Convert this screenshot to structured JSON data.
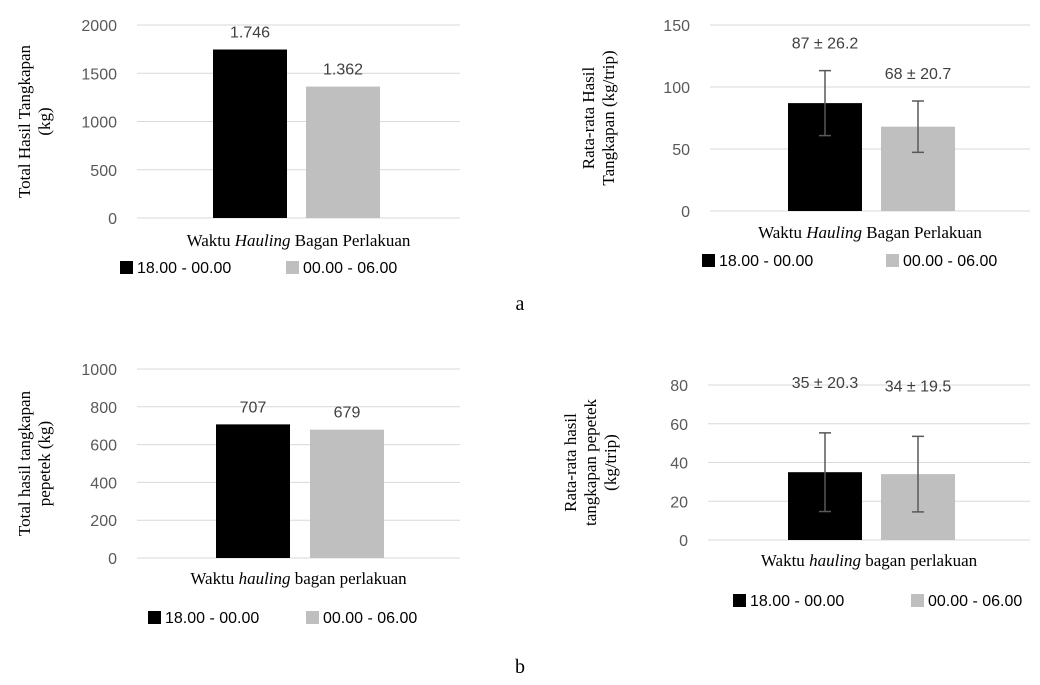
{
  "captions": {
    "a": "a",
    "b": "b"
  },
  "chart_data": [
    {
      "type": "bar",
      "categories": [
        ""
      ],
      "series": [
        {
          "name": "18.00 - 00.00",
          "values": [
            1746
          ],
          "labels": [
            "1.746"
          ],
          "color": "#000000"
        },
        {
          "name": "00.00 - 06.00",
          "values": [
            1362
          ],
          "labels": [
            "1.362"
          ],
          "color": "#bfbfbf"
        }
      ],
      "ylabel_lines": [
        "Total Hasil Tangkapan",
        "(kg)"
      ],
      "xlabel_parts": [
        "Waktu ",
        "Hauling",
        " Bagan Perlakuan"
      ],
      "ylim": [
        0,
        2000
      ],
      "yticks": [
        0,
        500,
        1000,
        1500,
        2000
      ],
      "grid": true,
      "legend_position": "bottom"
    },
    {
      "type": "bar",
      "categories": [
        ""
      ],
      "series": [
        {
          "name": "18.00 - 00.00",
          "values": [
            87
          ],
          "errors": [
            26.2
          ],
          "labels": [
            "87 ± 26.2"
          ],
          "color": "#000000"
        },
        {
          "name": "00.00 - 06.00",
          "values": [
            68
          ],
          "errors": [
            20.7
          ],
          "labels": [
            "68 ± 20.7"
          ],
          "color": "#bfbfbf"
        }
      ],
      "ylabel_lines": [
        "Rata-rata Hasil",
        "Tangkapan (kg/trip)"
      ],
      "xlabel_parts": [
        "Waktu ",
        "Hauling",
        " Bagan Perlakuan"
      ],
      "ylim": [
        0,
        150
      ],
      "yticks": [
        0,
        50,
        100,
        150
      ],
      "grid": true,
      "legend_position": "bottom"
    },
    {
      "type": "bar",
      "categories": [
        ""
      ],
      "series": [
        {
          "name": "18.00 - 00.00",
          "values": [
            707
          ],
          "labels": [
            "707"
          ],
          "color": "#000000"
        },
        {
          "name": "00.00 - 06.00",
          "values": [
            679
          ],
          "labels": [
            "679"
          ],
          "color": "#bfbfbf"
        }
      ],
      "ylabel_lines": [
        "Total hasil tangkapan",
        "pepetek (kg)"
      ],
      "xlabel_parts": [
        "Waktu ",
        "hauling",
        " bagan perlakuan"
      ],
      "ylim": [
        0,
        1000
      ],
      "yticks": [
        0,
        200,
        400,
        600,
        800,
        1000
      ],
      "grid": true,
      "legend_position": "bottom"
    },
    {
      "type": "bar",
      "categories": [
        ""
      ],
      "series": [
        {
          "name": "18.00 - 00.00",
          "values": [
            35
          ],
          "errors": [
            20.3
          ],
          "labels": [
            "35 ± 20.3"
          ],
          "color": "#000000"
        },
        {
          "name": "00.00 - 06.00",
          "values": [
            34
          ],
          "errors": [
            19.5
          ],
          "labels": [
            "34 ± 19.5"
          ],
          "color": "#bfbfbf"
        }
      ],
      "ylabel_lines": [
        "Rata-rata hasil",
        "tangkapan pepetek",
        "(kg/trip)"
      ],
      "xlabel_parts": [
        "Waktu ",
        "hauling",
        " bagan perlakuan"
      ],
      "ylim": [
        0,
        80
      ],
      "yticks": [
        0,
        20,
        40,
        60,
        80
      ],
      "grid": true,
      "legend_position": "bottom"
    }
  ]
}
